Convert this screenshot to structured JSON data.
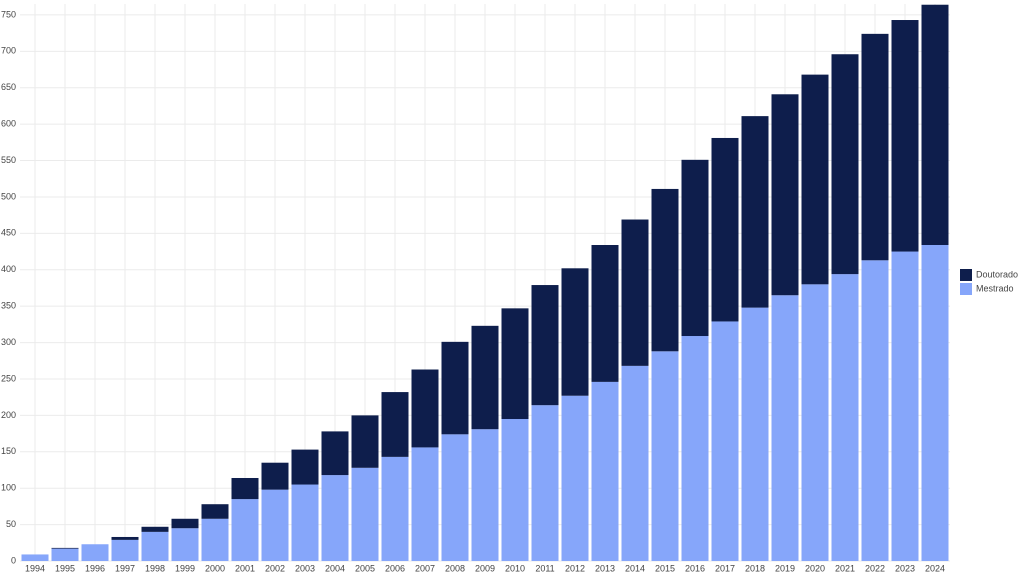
{
  "chart_data": {
    "type": "stacked-bar",
    "categories": [
      "1994",
      "1995",
      "1996",
      "1997",
      "1998",
      "1999",
      "2000",
      "2001",
      "2002",
      "2003",
      "2004",
      "2005",
      "2006",
      "2007",
      "2008",
      "2009",
      "2010",
      "2011",
      "2012",
      "2013",
      "2014",
      "2015",
      "2016",
      "2017",
      "2018",
      "2019",
      "2020",
      "2021",
      "2022",
      "2023",
      "2024"
    ],
    "series": [
      {
        "name": "Mestrado",
        "color": "#86a6fa",
        "values": [
          9,
          17,
          23,
          29,
          40,
          45,
          58,
          85,
          98,
          105,
          118,
          128,
          143,
          156,
          174,
          181,
          195,
          214,
          227,
          246,
          268,
          288,
          309,
          329,
          348,
          365,
          380,
          394,
          413,
          425,
          434
        ]
      },
      {
        "name": "Doutorado",
        "color": "#0e1e4c",
        "values": [
          0,
          1,
          0,
          4,
          7,
          13,
          20,
          29,
          37,
          48,
          60,
          72,
          89,
          107,
          127,
          142,
          152,
          165,
          175,
          188,
          201,
          223,
          242,
          252,
          263,
          276,
          288,
          302,
          311,
          318,
          330
        ]
      }
    ],
    "ylim": [
      0,
      765
    ],
    "yticks": [
      0,
      50,
      100,
      150,
      200,
      250,
      300,
      350,
      400,
      450,
      500,
      550,
      600,
      650,
      700,
      750
    ],
    "grid": true,
    "legend": "right"
  }
}
